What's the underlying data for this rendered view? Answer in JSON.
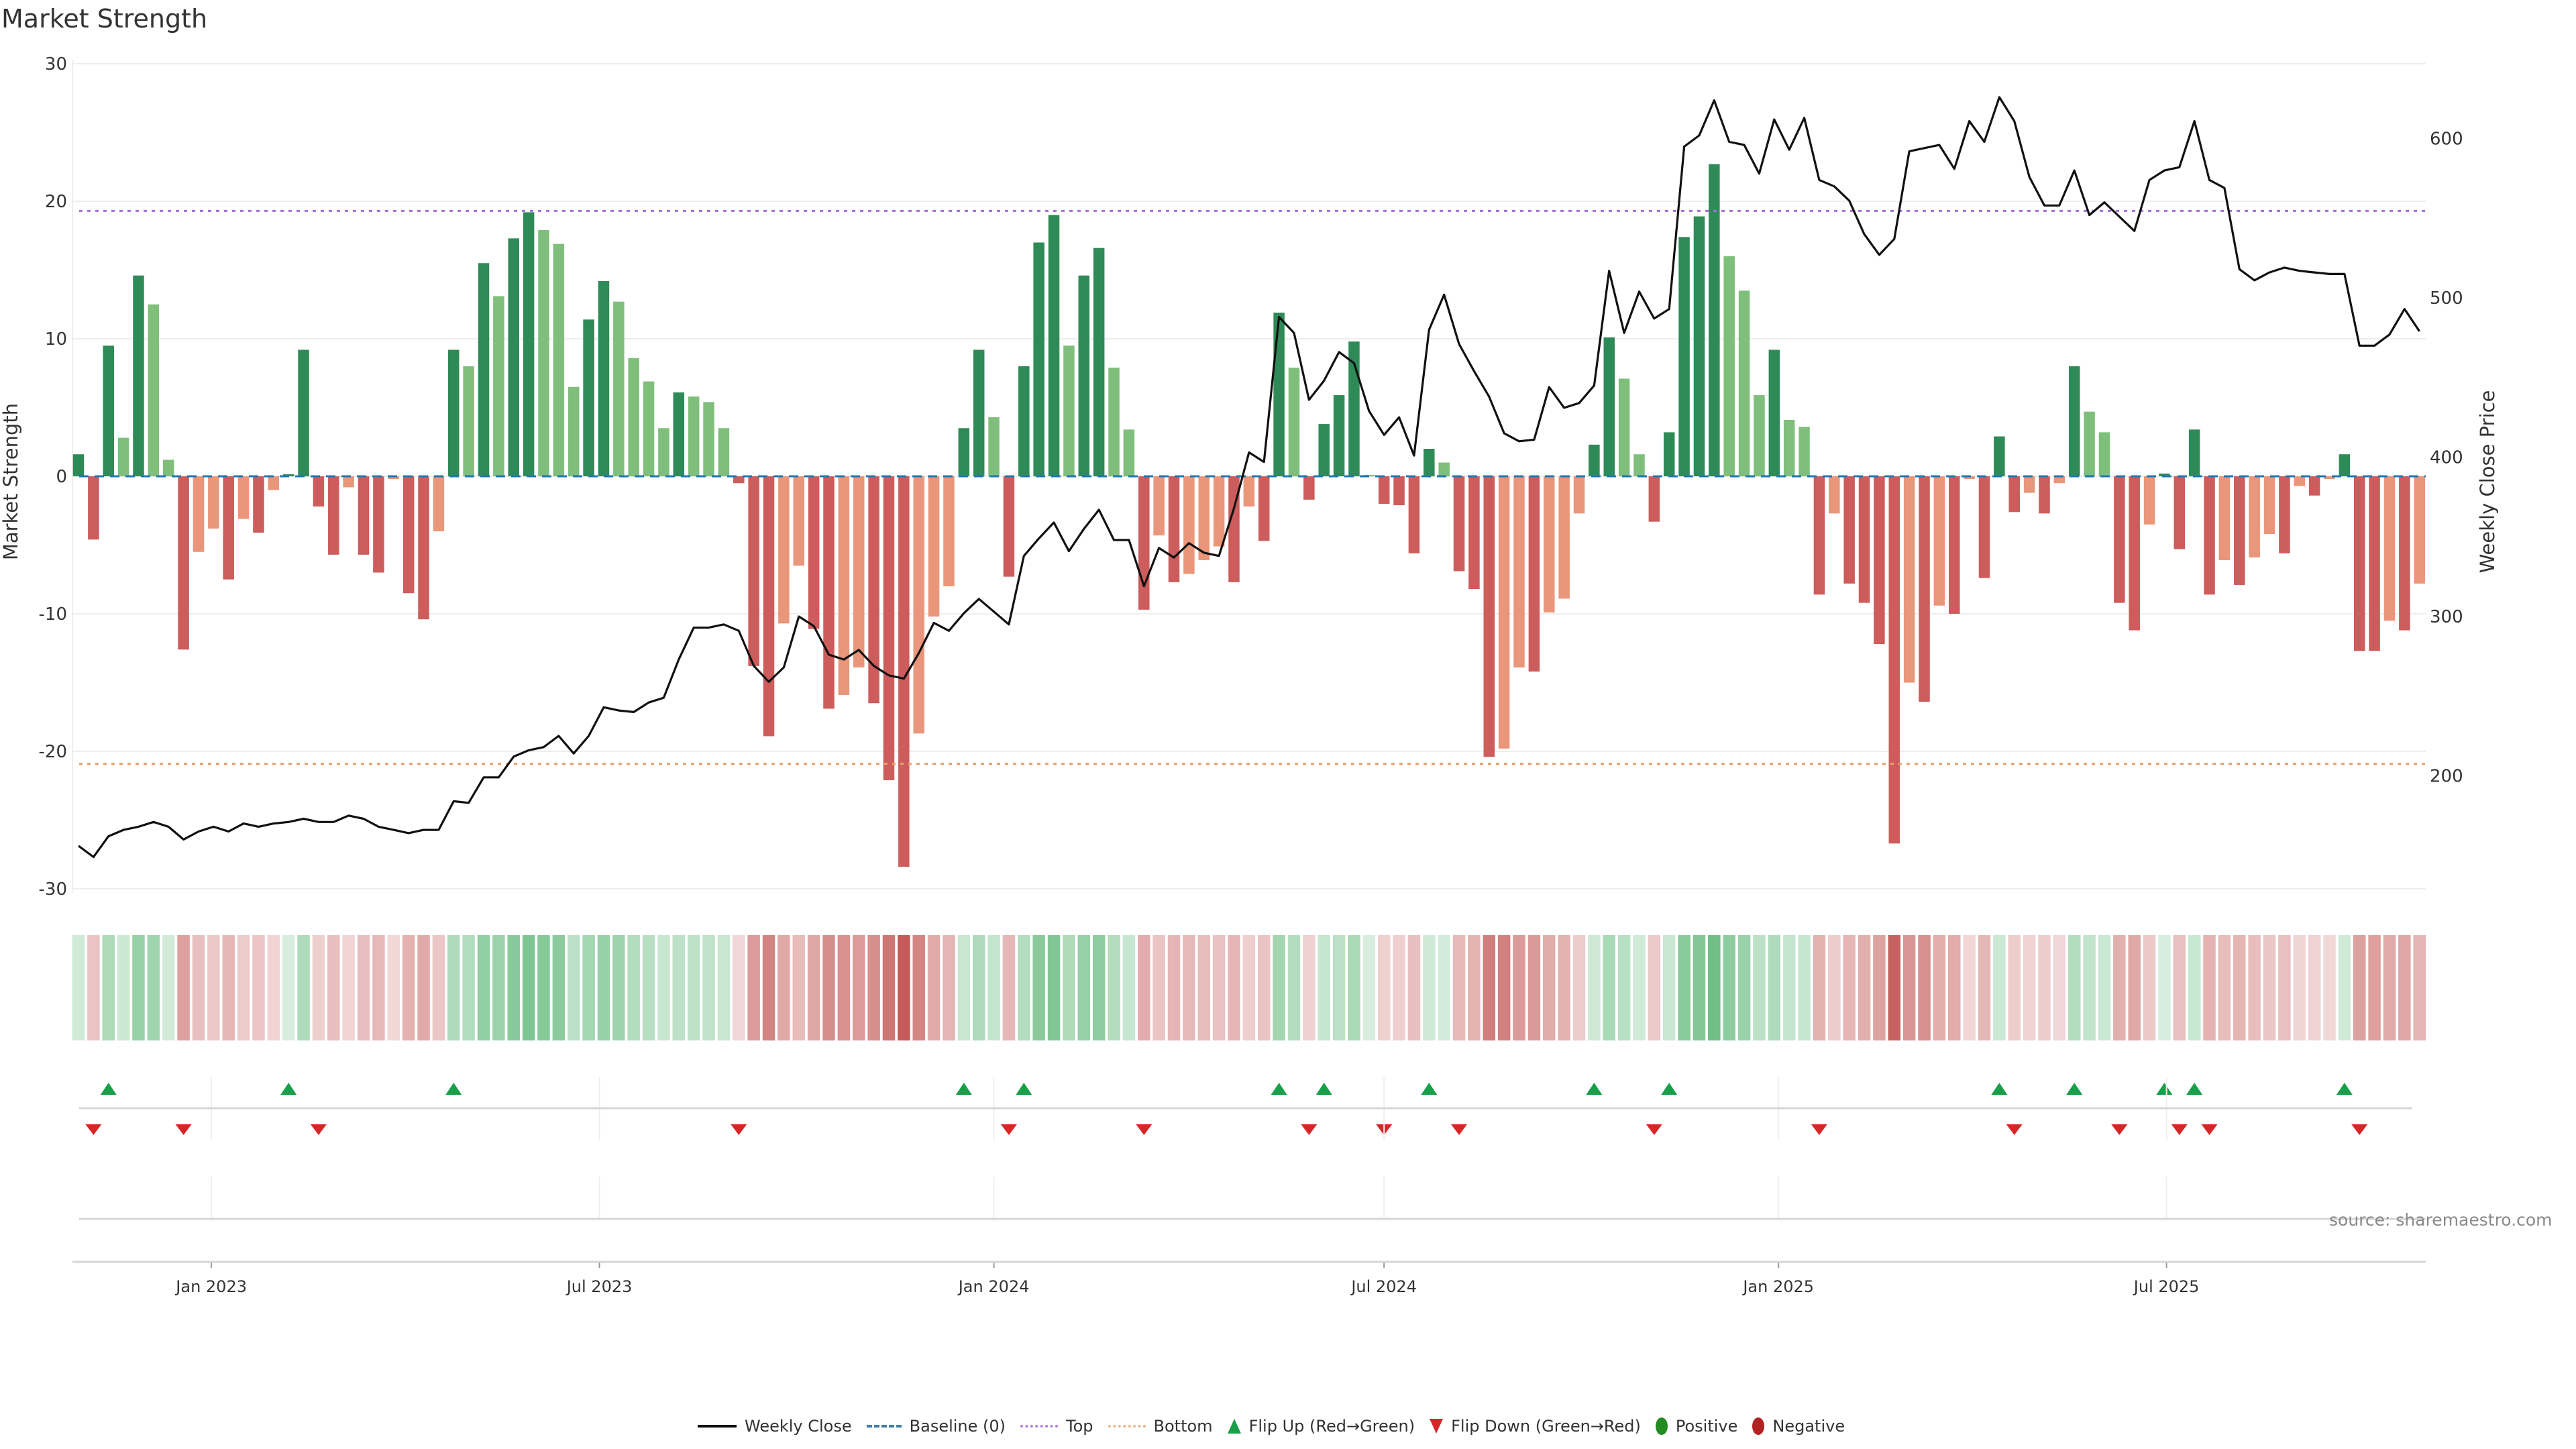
{
  "title": "Market Strength",
  "source": "source: sharemaestro.com",
  "legend": {
    "weekly_close": "Weekly Close",
    "baseline": "Baseline (0)",
    "top": "Top",
    "bottom": "Bottom",
    "flip_up": "Flip Up (Red→Green)",
    "flip_down": "Flip Down (Green→Red)",
    "positive": "Positive",
    "negative": "Negative"
  },
  "colors": {
    "bar_pos_strong": "#2e8b57",
    "bar_pos_weak": "#7fbf7b",
    "bar_neg_strong": "#cd5c5c",
    "bar_neg_weak": "#e9967a",
    "close_line": "#111111",
    "baseline": "#1f77b4",
    "top_line": "#a66ee0",
    "bottom_line": "#f0a06a",
    "flip_up": "#1a9e4a",
    "flip_down": "#d62728",
    "heat_pos": "#4caf68",
    "heat_neg": "#c0504d"
  },
  "chart_data": {
    "type": "bar",
    "title": "Market Strength",
    "ylabel": "Market Strength",
    "y2label": "Weekly Close Price",
    "ylim": [
      -30,
      30
    ],
    "yticks": [
      -30,
      -20,
      -10,
      0,
      10,
      20,
      30
    ],
    "y2lim": [
      129,
      647
    ],
    "y2ticks": [
      200,
      300,
      400,
      500,
      600
    ],
    "x_start": "2022-10-31",
    "x_step_days": 7,
    "xticks": [
      {
        "date": "2023-01-01",
        "label": "Jan 2023"
      },
      {
        "date": "2023-07-01",
        "label": "Jul 2023"
      },
      {
        "date": "2024-01-01",
        "label": "Jan 2024"
      },
      {
        "date": "2024-07-01",
        "label": "Jul 2024"
      },
      {
        "date": "2025-01-01",
        "label": "Jan 2025"
      },
      {
        "date": "2025-07-01",
        "label": "Jul 2025"
      }
    ],
    "top_level": 19.3,
    "bottom_level": -20.9,
    "baseline": 0,
    "strength": [
      1.6,
      -4.6,
      9.5,
      2.8,
      14.6,
      12.5,
      1.2,
      -12.6,
      -5.5,
      -3.8,
      -7.5,
      -3.1,
      -4.1,
      -1.0,
      0.15,
      9.2,
      -2.2,
      -5.7,
      -0.8,
      -5.7,
      -7.0,
      -0.2,
      -8.5,
      -10.4,
      -4.0,
      9.2,
      8.0,
      15.5,
      13.1,
      17.3,
      19.2,
      17.9,
      16.9,
      6.5,
      11.4,
      14.2,
      12.7,
      8.6,
      6.9,
      3.5,
      6.1,
      5.8,
      5.4,
      3.5,
      -0.5,
      -13.8,
      -18.9,
      -10.7,
      -6.5,
      -11.1,
      -16.9,
      -15.9,
      -13.9,
      -16.5,
      -22.1,
      -28.4,
      -18.7,
      -10.2,
      -8.0,
      3.5,
      9.2,
      4.3,
      -7.3,
      8.0,
      17.0,
      19.0,
      9.5,
      14.6,
      16.6,
      7.9,
      3.4,
      -9.7,
      -4.3,
      -7.7,
      -7.1,
      -6.1,
      -5.1,
      -7.7,
      -2.2,
      -4.7,
      11.9,
      7.9,
      -1.7,
      3.8,
      5.9,
      9.8,
      0.1,
      -2.0,
      -2.1,
      -5.6,
      2.0,
      1.0,
      -6.9,
      -8.2,
      -20.4,
      -19.8,
      -13.9,
      -14.2,
      -9.9,
      -8.9,
      -2.7,
      2.3,
      10.1,
      7.1,
      1.6,
      -3.3,
      3.2,
      17.4,
      18.9,
      22.7,
      16.0,
      13.5,
      5.9,
      9.2,
      4.1,
      3.6,
      -8.6,
      -2.7,
      -7.8,
      -9.2,
      -12.2,
      -26.7,
      -15.0,
      -16.4,
      -9.4,
      -10.0,
      -0.2,
      -7.4,
      2.9,
      -2.6,
      -1.2,
      -2.7,
      -0.5,
      8.0,
      4.7,
      3.2,
      -9.2,
      -11.2,
      -3.5,
      0.2,
      -5.3,
      3.4,
      -8.6,
      -6.1,
      -7.9,
      -5.9,
      -4.2,
      -5.6,
      -0.7,
      -1.4,
      -0.2,
      1.6,
      -12.7,
      -12.7,
      -10.5,
      -11.2,
      -7.8
    ],
    "weekly_close": [
      156,
      149,
      162,
      166,
      168,
      171,
      168,
      160,
      165,
      168,
      165,
      170,
      168,
      170,
      171,
      173,
      171,
      171,
      175,
      173,
      168,
      166,
      164,
      166,
      166,
      184,
      183,
      199,
      199,
      212,
      216,
      218,
      225,
      214,
      225,
      243,
      241,
      240,
      246,
      249,
      273,
      293,
      293,
      295,
      291,
      269,
      259,
      268,
      300,
      294,
      276,
      273,
      279,
      269,
      263,
      261,
      277,
      296,
      291,
      302,
      311,
      303,
      295,
      338,
      349,
      359,
      341,
      355,
      367,
      348,
      348,
      319,
      343,
      337,
      346,
      340,
      338,
      368,
      403,
      397,
      488,
      478,
      436,
      448,
      466,
      459,
      429,
      414,
      425,
      401,
      480,
      502,
      471,
      454,
      438,
      415,
      410,
      411,
      444,
      431,
      434,
      445,
      517,
      478,
      504,
      487,
      493,
      595,
      602,
      624,
      598,
      596,
      578,
      612,
      593,
      613,
      574,
      570,
      561,
      540,
      527,
      537,
      592,
      594,
      596,
      581,
      611,
      598,
      626,
      611,
      576,
      558,
      558,
      580,
      552,
      560,
      551,
      542,
      574,
      580,
      582,
      611,
      574,
      569,
      518,
      511,
      516,
      519,
      517,
      516,
      515,
      515,
      470,
      470,
      477,
      493,
      479
    ],
    "flip_up_index": [
      2,
      14,
      25,
      59,
      63,
      80,
      83,
      90,
      101,
      106,
      128,
      133,
      139,
      141,
      151
    ],
    "flip_down_index": [
      1,
      7,
      16,
      44,
      62,
      71,
      82,
      87,
      92,
      105,
      116,
      129,
      136,
      140,
      142,
      152
    ],
    "legend_position": "bottom-center",
    "grid": true
  }
}
